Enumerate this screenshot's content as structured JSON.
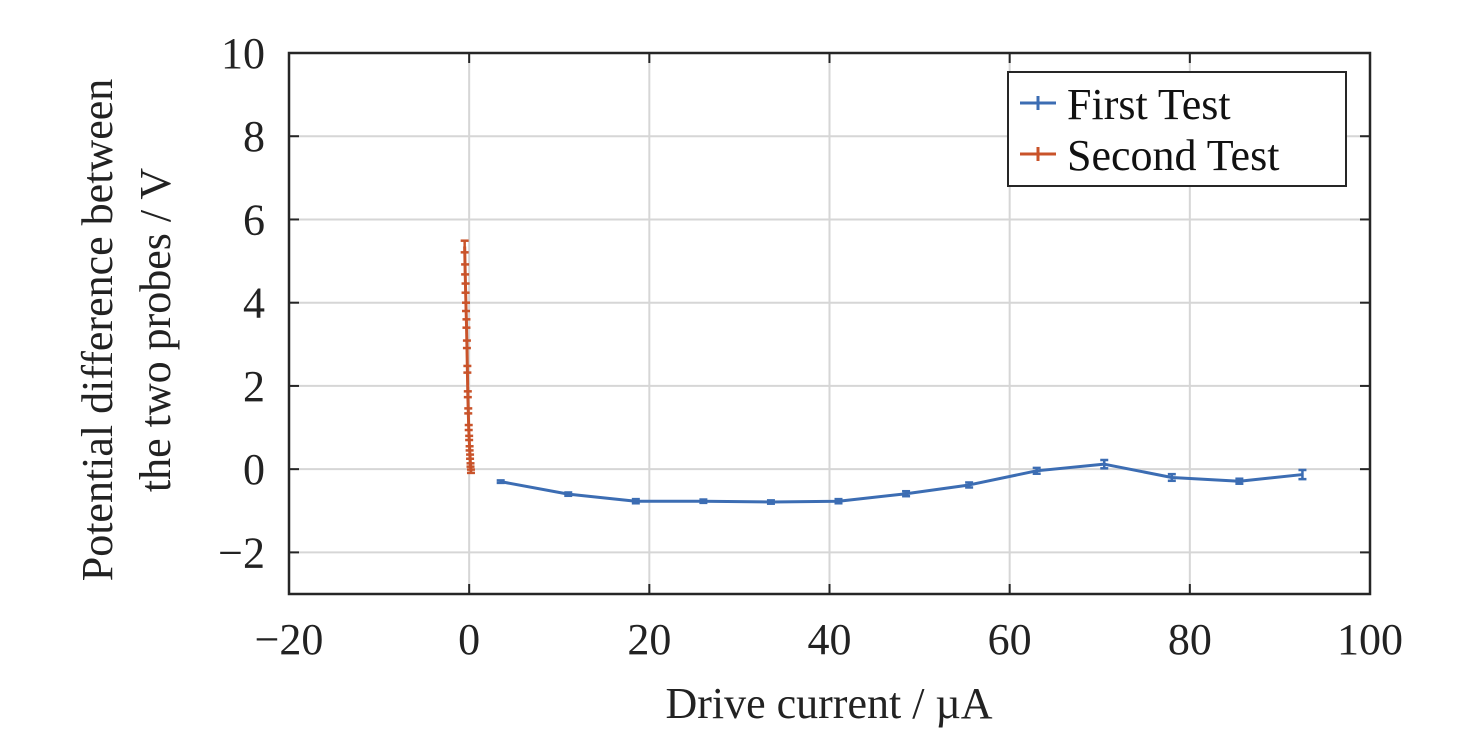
{
  "chart_data": {
    "type": "line",
    "title": "",
    "xlabel": "Drive current / µA",
    "ylabel_lines": [
      "Potential difference between",
      "the two probes / V"
    ],
    "xlim": [
      -20,
      100
    ],
    "ylim": [
      -3,
      10
    ],
    "xticks": [
      -20,
      0,
      20,
      40,
      60,
      80,
      100
    ],
    "yticks": [
      -2,
      0,
      2,
      4,
      6,
      8,
      10
    ],
    "xtick_labels": [
      "−20",
      "0",
      "20",
      "40",
      "60",
      "80",
      "100"
    ],
    "ytick_labels": [
      "−2",
      "0",
      "2",
      "4",
      "6",
      "8",
      "10"
    ],
    "grid": true,
    "legend_position": "top-right",
    "series": [
      {
        "name": "First Test",
        "color": "#3c6db3",
        "x": [
          3.5,
          11,
          18.5,
          26,
          33.5,
          41,
          48.5,
          55.5,
          63,
          70.5,
          78,
          85.5,
          92.5
        ],
        "y": [
          -0.3,
          -0.6,
          -0.77,
          -0.77,
          -0.79,
          -0.77,
          -0.59,
          -0.38,
          -0.04,
          0.12,
          -0.2,
          -0.29,
          -0.13
        ],
        "err": [
          0.03,
          0.04,
          0.05,
          0.04,
          0.04,
          0.05,
          0.06,
          0.06,
          0.07,
          0.1,
          0.08,
          0.06,
          0.11
        ]
      },
      {
        "name": "Second Test",
        "color": "#c9532a",
        "x": [
          0.2,
          0.15,
          0.1,
          0.05,
          0.0,
          -0.05,
          -0.1,
          -0.15,
          -0.2,
          -0.25,
          -0.3,
          -0.35,
          -0.4,
          -0.45,
          -0.5
        ],
        "y": [
          -0.05,
          0.1,
          0.3,
          0.5,
          0.75,
          1.0,
          1.4,
          1.8,
          2.4,
          3.0,
          3.5,
          3.9,
          4.35,
          4.8,
          5.35
        ],
        "err": [
          0.04,
          0.04,
          0.05,
          0.05,
          0.05,
          0.06,
          0.06,
          0.07,
          0.08,
          0.09,
          0.1,
          0.1,
          0.11,
          0.12,
          0.14
        ]
      }
    ]
  }
}
